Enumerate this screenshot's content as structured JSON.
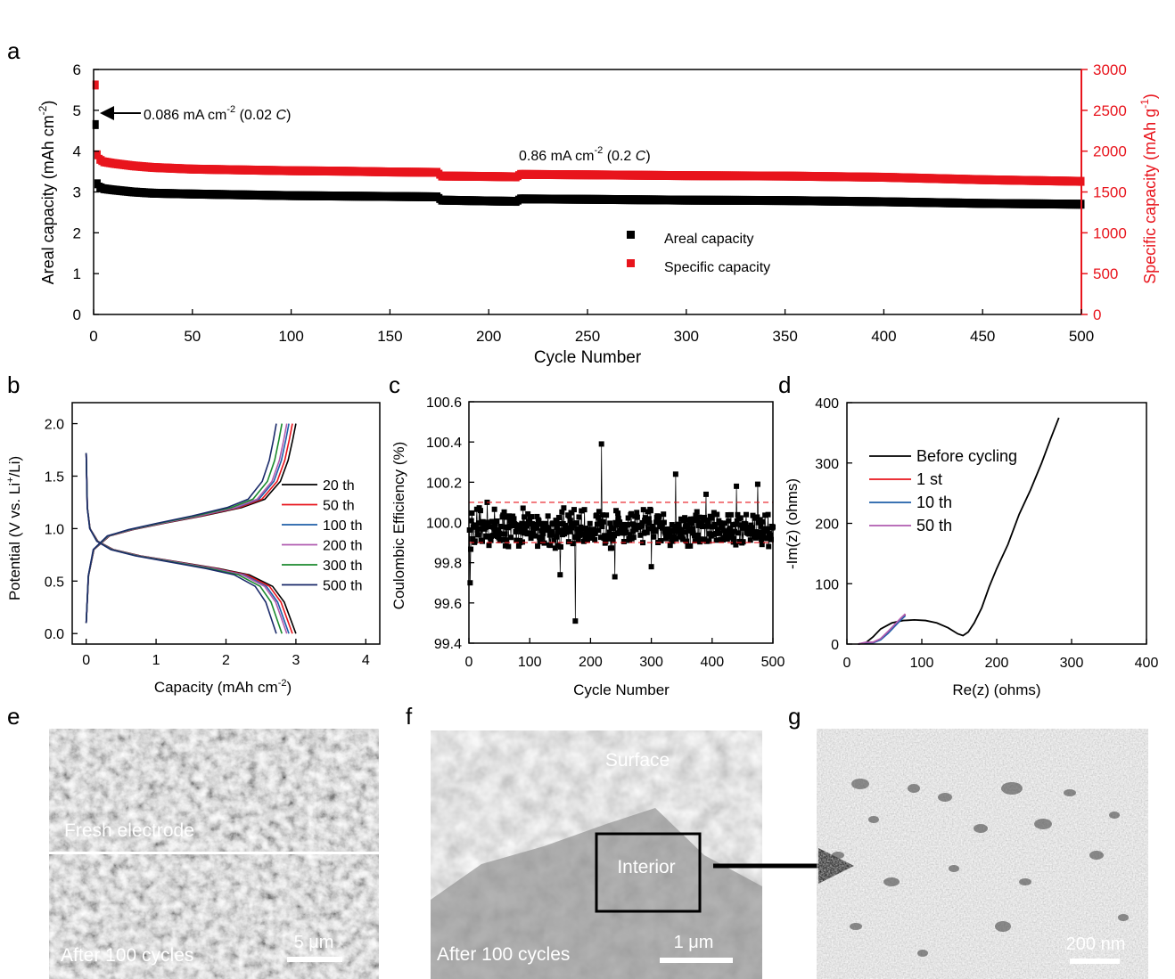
{
  "panel_labels": [
    "a",
    "b",
    "c",
    "d",
    "e",
    "f",
    "g"
  ],
  "chart_data": [
    {
      "panel": "a",
      "type": "scatter",
      "xlabel": "Cycle Number",
      "ylabel_left": "Areal capacity (mAh  cm",
      "ylabel_left_sup": "-2",
      "ylabel_right": "Specific capacity (mAh g",
      "ylabel_right_sup": "-1",
      "xlim": [
        0,
        500
      ],
      "ylim_left": [
        0,
        6
      ],
      "ylim_right": [
        0,
        3000
      ],
      "xticks": [
        0,
        50,
        100,
        150,
        200,
        250,
        300,
        350,
        400,
        450,
        500
      ],
      "yticks_left": [
        0,
        1,
        2,
        3,
        4,
        5,
        6
      ],
      "yticks_right": [
        0,
        500,
        1000,
        1500,
        2000,
        2500,
        3000
      ],
      "colors": {
        "areal": "#000000",
        "specific": "#e8141c"
      },
      "series": [
        {
          "name": "Areal capacity",
          "axis": "left",
          "color": "#000000",
          "x": [
            1,
            2,
            3,
            5,
            10,
            20,
            30,
            50,
            75,
            100,
            125,
            150,
            174,
            176,
            200,
            214,
            216,
            250,
            300,
            350,
            400,
            450,
            500
          ],
          "y": [
            4.65,
            3.2,
            3.12,
            3.08,
            3.05,
            3.0,
            2.97,
            2.95,
            2.93,
            2.91,
            2.9,
            2.89,
            2.88,
            2.8,
            2.78,
            2.77,
            2.83,
            2.82,
            2.8,
            2.79,
            2.76,
            2.72,
            2.7
          ]
        },
        {
          "name": "Specific capacity",
          "axis": "right",
          "color": "#e8141c",
          "x": [
            1,
            2,
            3,
            5,
            10,
            20,
            30,
            50,
            75,
            100,
            125,
            150,
            174,
            176,
            200,
            214,
            216,
            250,
            300,
            350,
            400,
            450,
            500
          ],
          "y": [
            2810,
            1955,
            1900,
            1870,
            1850,
            1820,
            1800,
            1780,
            1770,
            1760,
            1755,
            1745,
            1740,
            1695,
            1690,
            1685,
            1715,
            1710,
            1700,
            1695,
            1680,
            1650,
            1630
          ]
        }
      ],
      "annotations": [
        {
          "text": "0.086 mA cm",
          "sup": "-2",
          "rate": "0.02",
          "unit": "C"
        },
        {
          "text": "0.86 mA cm",
          "sup": "-2",
          "rate": "0.2",
          "unit": "C"
        }
      ],
      "legend": {
        "position": "center-right",
        "entries": [
          "Areal capacity",
          "Specific capacity"
        ]
      }
    },
    {
      "panel": "b",
      "type": "line",
      "xlabel": "Capacity (mAh cm",
      "xlabel_sup": "-2",
      "ylabel": "Potential (V vs. Li",
      "ylabel_sup": "+",
      "ylabel_tail": "/Li)",
      "xlim": [
        -0.2,
        4.2
      ],
      "ylim": [
        -0.1,
        2.2
      ],
      "xticks": [
        0,
        1,
        2,
        3,
        4
      ],
      "yticks": [
        0.0,
        0.5,
        1.0,
        1.5,
        2.0
      ],
      "series": [
        {
          "name": "20 th",
          "color": "#000000",
          "capacity": 3.0
        },
        {
          "name": "50 th",
          "color": "#e8141c",
          "capacity": 2.95
        },
        {
          "name": "100 th",
          "color": "#1f5fa8",
          "capacity": 2.9
        },
        {
          "name": "200 th",
          "color": "#b05cb0",
          "capacity": 2.87
        },
        {
          "name": "300 th",
          "color": "#1b8a2e",
          "capacity": 2.8
        },
        {
          "name": "500 th",
          "color": "#1a2a6a",
          "capacity": 2.72
        }
      ],
      "legend": {
        "position": "right"
      }
    },
    {
      "panel": "c",
      "type": "scatter",
      "xlabel": "Cycle Number",
      "ylabel": "Coulombic Efficiency (%)",
      "xlim": [
        0,
        500
      ],
      "ylim": [
        99.4,
        100.6
      ],
      "xticks": [
        0,
        100,
        200,
        300,
        400,
        500
      ],
      "yticks": [
        99.4,
        99.6,
        99.8,
        100.0,
        100.2,
        100.4,
        100.6
      ],
      "ytick_labels": [
        "99.4",
        "99.6",
        "99.8",
        "100.0",
        "100.2",
        "100.4",
        "100.6"
      ],
      "reference_lines": [
        100.1,
        99.9
      ],
      "reference_color": "#e8141c",
      "outliers": [
        {
          "x": 2,
          "y": 99.7
        },
        {
          "x": 175,
          "y": 99.51
        },
        {
          "x": 218,
          "y": 100.39
        },
        {
          "x": 340,
          "y": 100.24
        },
        {
          "x": 440,
          "y": 100.18
        },
        {
          "x": 30,
          "y": 100.1
        },
        {
          "x": 150,
          "y": 99.74
        },
        {
          "x": 240,
          "y": 99.73
        },
        {
          "x": 475,
          "y": 100.19
        },
        {
          "x": 300,
          "y": 99.78
        },
        {
          "x": 390,
          "y": 100.14
        }
      ],
      "band": {
        "center": 99.97,
        "spread": 0.11,
        "count": 500
      }
    },
    {
      "panel": "d",
      "type": "line",
      "xlabel": "Re(z) (ohms)",
      "ylabel": "-Im(z) (ohms)",
      "xlim": [
        0,
        400
      ],
      "ylim": [
        0,
        400
      ],
      "xticks": [
        0,
        100,
        200,
        300,
        400
      ],
      "yticks": [
        0,
        100,
        200,
        300,
        400
      ],
      "series": [
        {
          "name": "Before cycling",
          "color": "#000000",
          "x": [
            15,
            25,
            35,
            45,
            60,
            75,
            90,
            105,
            120,
            135,
            148,
            155,
            162,
            170,
            180,
            190,
            200,
            215,
            230,
            245,
            260,
            272,
            283
          ],
          "y": [
            0,
            2,
            12,
            25,
            35,
            39,
            40,
            39,
            35,
            27,
            17,
            14,
            20,
            35,
            60,
            95,
            125,
            165,
            215,
            255,
            300,
            340,
            375
          ]
        },
        {
          "name": "1 st",
          "color": "#e8141c",
          "x": [
            15,
            25,
            35,
            45,
            55,
            65,
            72,
            78
          ],
          "y": [
            0,
            2,
            3,
            8,
            20,
            33,
            42,
            49
          ]
        },
        {
          "name": "10 th",
          "color": "#1f5fa8",
          "x": [
            15,
            25,
            35,
            45,
            55,
            65,
            72,
            78
          ],
          "y": [
            0,
            2,
            2,
            7,
            18,
            31,
            40,
            47
          ]
        },
        {
          "name": "50 th",
          "color": "#b05cb0",
          "x": [
            15,
            25,
            35,
            45,
            55,
            65,
            72,
            78
          ],
          "y": [
            0,
            3,
            3,
            9,
            21,
            34,
            43,
            50
          ]
        }
      ],
      "legend": {
        "position": "top-left"
      }
    }
  ],
  "images": {
    "e": {
      "labels": [
        "Fresh electrode",
        "After 100 cycles"
      ],
      "scalebar": "5 μm"
    },
    "f": {
      "labels": [
        "Surface",
        "Interior",
        "After 100 cycles"
      ],
      "scalebar": "1 μm"
    },
    "g": {
      "scalebar": "200 nm"
    }
  }
}
